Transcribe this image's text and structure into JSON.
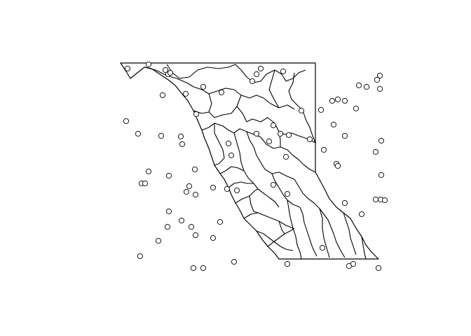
{
  "map": {
    "kind": "region boundary map with overlaid point locations",
    "background_color": "#ffffff",
    "line_color": "#000000",
    "point_style": "open-circle",
    "axes_shown": false,
    "title": ""
  }
}
